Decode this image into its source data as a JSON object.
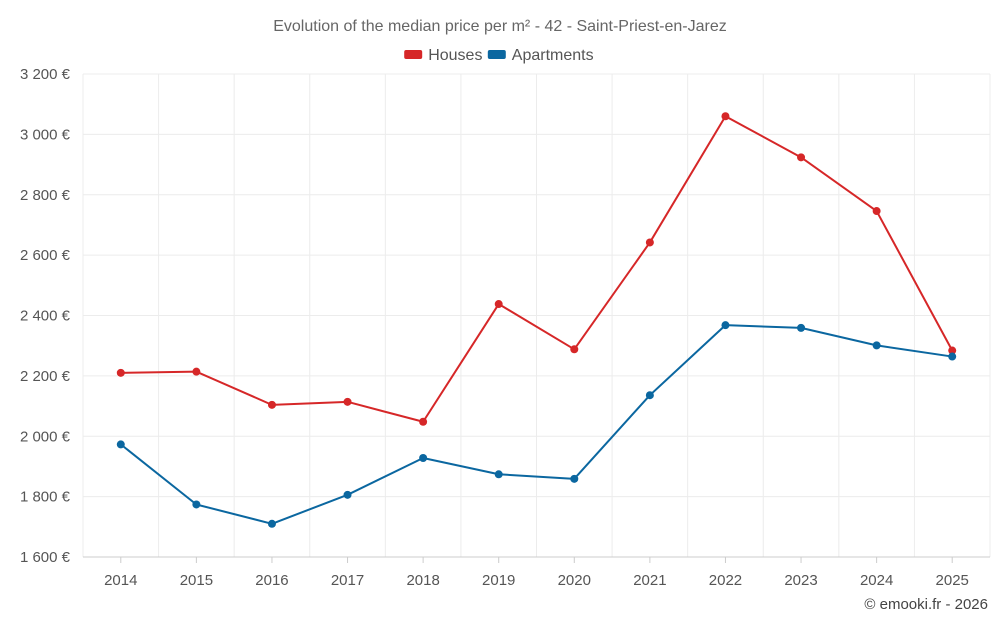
{
  "chart_data": {
    "type": "line",
    "title": "Evolution of the median price per m² - 42 - Saint-Priest-en-Jarez",
    "categories": [
      "2014",
      "2015",
      "2016",
      "2017",
      "2018",
      "2019",
      "2020",
      "2021",
      "2022",
      "2023",
      "2024",
      "2025"
    ],
    "series": [
      {
        "name": "Houses",
        "color": "#d62728",
        "values": [
          2210,
          2214,
          2104,
          2114,
          2048,
          2438,
          2288,
          2642,
          3060,
          2924,
          2746,
          2284
        ]
      },
      {
        "name": "Apartments",
        "color": "#0b67a0",
        "values": [
          1973,
          1774,
          1710,
          1806,
          1928,
          1874,
          1859,
          2136,
          2368,
          2359,
          2301,
          2264
        ]
      }
    ],
    "ylim": [
      1600,
      3200
    ],
    "yticks": [
      1600,
      1800,
      2000,
      2200,
      2400,
      2600,
      2800,
      3000,
      3200
    ],
    "ytick_labels": [
      "1 600 €",
      "1 800 €",
      "2 000 €",
      "2 200 €",
      "2 400 €",
      "2 600 €",
      "2 800 €",
      "3 000 €",
      "3 200 €"
    ],
    "xlabel": "",
    "ylabel": "",
    "grid": true,
    "legend_position": "top-center"
  },
  "credit": "© emooki.fr - 2026"
}
